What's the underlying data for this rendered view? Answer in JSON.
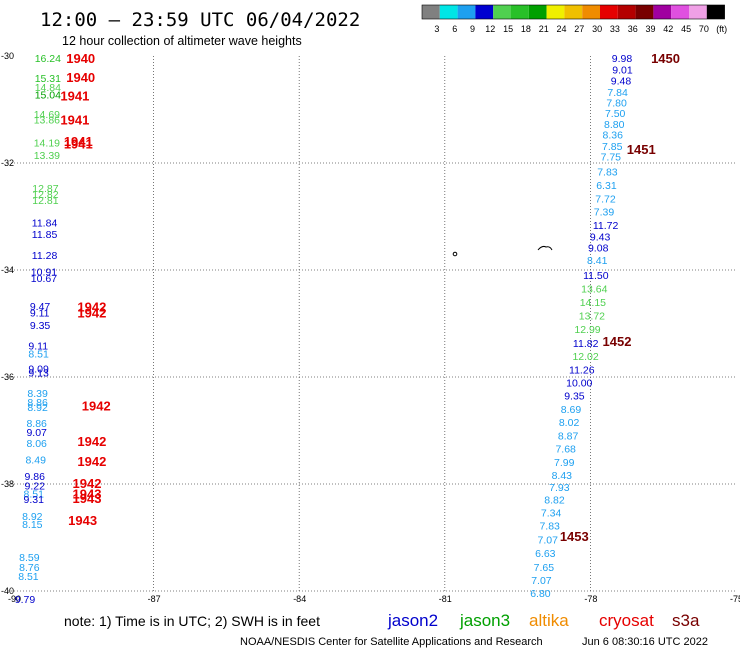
{
  "header": {
    "title": "12:00 — 23:59 UTC 06/04/2022",
    "subtitle": "12 hour collection of altimeter wave heights"
  },
  "colorbar": {
    "colors": [
      "#808080",
      "#00e6e6",
      "#1ea0f0",
      "#0000d0",
      "#50d050",
      "#28c028",
      "#00a000",
      "#f0f000",
      "#f0c000",
      "#f08c00",
      "#e60000",
      "#b40000",
      "#780000",
      "#a000a0",
      "#e050e0",
      "#f0a0e6",
      "#000000"
    ],
    "labels": [
      "3",
      "6",
      "9",
      "12",
      "15",
      "18",
      "21",
      "24",
      "27",
      "30",
      "33",
      "36",
      "39",
      "42",
      "45",
      "70",
      "(ft)"
    ]
  },
  "chart_data": {
    "type": "scatter",
    "xlim": [
      -90,
      -75
    ],
    "ylim": [
      -40,
      -30
    ],
    "x_ticks": [
      "-90",
      "-87",
      "-84",
      "-81",
      "-78",
      "-75"
    ],
    "y_ticks": [
      "-30",
      "-32",
      "-34",
      "-36",
      "-38",
      "-40"
    ],
    "grid": "dotted",
    "series": [
      {
        "name": "jason2",
        "color": "#0000cc",
        "points": [
          {
            "x": -77.56,
            "y": -30.04,
            "v": "9.98",
            "c": "#0000cc"
          },
          {
            "x": -77.55,
            "y": -30.25,
            "v": "9.01",
            "c": "#0000cc"
          },
          {
            "x": -77.58,
            "y": -30.46,
            "v": "9.48",
            "c": "#0000cc"
          },
          {
            "x": -77.65,
            "y": -30.67,
            "v": "7.84",
            "c": "#1ea0f0"
          },
          {
            "x": -77.67,
            "y": -30.87,
            "v": "7.80",
            "c": "#1ea0f0"
          },
          {
            "x": -77.7,
            "y": -31.07,
            "v": "7.50",
            "c": "#1ea0f0"
          },
          {
            "x": -77.72,
            "y": -31.27,
            "v": "8.80",
            "c": "#1ea0f0"
          },
          {
            "x": -77.75,
            "y": -31.47,
            "v": "8.36",
            "c": "#1ea0f0"
          },
          {
            "x": -77.76,
            "y": -31.68,
            "v": "7.85",
            "c": "#1ea0f0"
          },
          {
            "x": -77.79,
            "y": -31.88,
            "v": "7.75",
            "c": "#1ea0f0"
          },
          {
            "x": -77.86,
            "y": -32.16,
            "v": "7.83",
            "c": "#1ea0f0"
          },
          {
            "x": -77.88,
            "y": -32.41,
            "v": "6.31",
            "c": "#1ea0f0"
          },
          {
            "x": -77.9,
            "y": -32.66,
            "v": "7.72",
            "c": "#1ea0f0"
          },
          {
            "x": -77.93,
            "y": -32.91,
            "v": "7.39",
            "c": "#1ea0f0"
          },
          {
            "x": -77.95,
            "y": -33.16,
            "v": "11.72",
            "c": "#0000cc"
          },
          {
            "x": -78.01,
            "y": -33.37,
            "v": "9.43",
            "c": "#0000cc"
          },
          {
            "x": -78.05,
            "y": -33.58,
            "v": "9.08",
            "c": "#0000cc"
          },
          {
            "x": -78.07,
            "y": -33.81,
            "v": "8.41",
            "c": "#1ea0f0"
          },
          {
            "x": -78.15,
            "y": -34.09,
            "v": "11.50",
            "c": "#0000cc"
          },
          {
            "x": -78.19,
            "y": -34.35,
            "v": "13.64",
            "c": "#50d050"
          },
          {
            "x": -78.22,
            "y": -34.6,
            "v": "14.15",
            "c": "#50d050"
          },
          {
            "x": -78.24,
            "y": -34.85,
            "v": "13.72",
            "c": "#50d050"
          },
          {
            "x": -78.33,
            "y": -35.1,
            "v": "12.99",
            "c": "#50d050"
          },
          {
            "x": -78.36,
            "y": -35.36,
            "v": "11.82",
            "c": "#0000cc"
          },
          {
            "x": -78.37,
            "y": -35.61,
            "v": "12.02",
            "c": "#50d050"
          },
          {
            "x": -78.44,
            "y": -35.86,
            "v": "11.26",
            "c": "#0000cc"
          },
          {
            "x": -78.5,
            "y": -36.1,
            "v": "10.00",
            "c": "#0000cc"
          },
          {
            "x": -78.54,
            "y": -36.35,
            "v": "9.35",
            "c": "#0000cc"
          },
          {
            "x": -78.61,
            "y": -36.6,
            "v": "8.69",
            "c": "#1ea0f0"
          },
          {
            "x": -78.65,
            "y": -36.84,
            "v": "8.02",
            "c": "#1ea0f0"
          },
          {
            "x": -78.67,
            "y": -37.09,
            "v": "8.87",
            "c": "#1ea0f0"
          },
          {
            "x": -78.72,
            "y": -37.34,
            "v": "7.68",
            "c": "#1ea0f0"
          },
          {
            "x": -78.75,
            "y": -37.59,
            "v": "7.99",
            "c": "#1ea0f0"
          },
          {
            "x": -78.8,
            "y": -37.83,
            "v": "8.43",
            "c": "#1ea0f0"
          },
          {
            "x": -78.85,
            "y": -38.06,
            "v": "7.93",
            "c": "#1ea0f0"
          },
          {
            "x": -78.95,
            "y": -38.29,
            "v": "8.82",
            "c": "#1ea0f0"
          },
          {
            "x": -79.02,
            "y": -38.53,
            "v": "7.34",
            "c": "#1ea0f0"
          },
          {
            "x": -79.05,
            "y": -38.78,
            "v": "7.83",
            "c": "#1ea0f0"
          },
          {
            "x": -79.09,
            "y": -39.04,
            "v": "7.07",
            "c": "#1ea0f0"
          },
          {
            "x": -79.14,
            "y": -39.29,
            "v": "6.63",
            "c": "#1ea0f0"
          },
          {
            "x": -79.17,
            "y": -39.55,
            "v": "7.65",
            "c": "#1ea0f0"
          },
          {
            "x": -79.22,
            "y": -39.79,
            "v": "7.07",
            "c": "#1ea0f0"
          },
          {
            "x": -79.24,
            "y": -40.04,
            "v": "6.80",
            "c": "#1ea0f0"
          }
        ]
      },
      {
        "name": "jason3",
        "color": "#00a000",
        "points": [
          {
            "x": -89.45,
            "y": -30.04,
            "v": "16.24",
            "c": "#28c028"
          },
          {
            "x": -89.45,
            "y": -30.41,
            "v": "15.31",
            "c": "#28c028"
          },
          {
            "x": -89.45,
            "y": -30.58,
            "v": "14.84",
            "c": "#50d050"
          },
          {
            "x": -89.45,
            "y": -30.72,
            "v": "15.04",
            "c": "#00a000"
          },
          {
            "x": -89.47,
            "y": -31.08,
            "v": "14.69",
            "c": "#50d050"
          },
          {
            "x": -89.47,
            "y": -31.19,
            "v": "13.86",
            "c": "#50d050"
          },
          {
            "x": -89.47,
            "y": -31.62,
            "v": "14.19",
            "c": "#50d050"
          },
          {
            "x": -89.47,
            "y": -31.85,
            "v": "13.39",
            "c": "#50d050"
          },
          {
            "x": -89.5,
            "y": -32.47,
            "v": "12.87",
            "c": "#50d050"
          },
          {
            "x": -89.5,
            "y": -32.58,
            "v": "12.82",
            "c": "#50d050"
          },
          {
            "x": -89.5,
            "y": -32.69,
            "v": "12.81",
            "c": "#50d050"
          },
          {
            "x": -89.51,
            "y": -33.11,
            "v": "11.84",
            "c": "#0000cc"
          },
          {
            "x": -89.51,
            "y": -33.33,
            "v": "11.85",
            "c": "#0000cc"
          },
          {
            "x": -89.51,
            "y": -33.72,
            "v": "11.28",
            "c": "#0000cc"
          },
          {
            "x": -89.53,
            "y": -34.03,
            "v": "10.91",
            "c": "#0000cc"
          },
          {
            "x": -89.53,
            "y": -34.15,
            "v": "10.67",
            "c": "#0000cc"
          },
          {
            "x": -89.55,
            "y": -34.67,
            "v": "9.47",
            "c": "#0000cc"
          },
          {
            "x": -89.55,
            "y": -34.79,
            "v": "9.11",
            "c": "#0000cc"
          },
          {
            "x": -89.55,
            "y": -35.03,
            "v": "9.35",
            "c": "#0000cc"
          },
          {
            "x": -89.58,
            "y": -35.41,
            "v": "9.11",
            "c": "#0000cc"
          },
          {
            "x": -89.58,
            "y": -35.56,
            "v": "8.51",
            "c": "#1ea0f0"
          },
          {
            "x": -89.58,
            "y": -35.84,
            "v": "9.09",
            "c": "#0000cc"
          },
          {
            "x": -89.58,
            "y": -35.92,
            "v": "9.13",
            "c": "#0000cc"
          },
          {
            "x": -89.6,
            "y": -36.3,
            "v": "8.39",
            "c": "#1ea0f0"
          },
          {
            "x": -89.6,
            "y": -36.47,
            "v": "8.86",
            "c": "#1ea0f0"
          },
          {
            "x": -89.6,
            "y": -36.56,
            "v": "8.92",
            "c": "#1ea0f0"
          },
          {
            "x": -89.62,
            "y": -36.86,
            "v": "8.86",
            "c": "#1ea0f0"
          },
          {
            "x": -89.62,
            "y": -37.03,
            "v": "9.07",
            "c": "#0000cc"
          },
          {
            "x": -89.62,
            "y": -37.23,
            "v": "8.06",
            "c": "#1ea0f0"
          },
          {
            "x": -89.64,
            "y": -37.54,
            "v": "8.49",
            "c": "#1ea0f0"
          },
          {
            "x": -89.66,
            "y": -37.85,
            "v": "9.86",
            "c": "#0000cc"
          },
          {
            "x": -89.66,
            "y": -38.03,
            "v": "9.22",
            "c": "#0000cc"
          },
          {
            "x": -89.68,
            "y": -38.18,
            "v": "8.51",
            "c": "#1ea0f0"
          },
          {
            "x": -89.68,
            "y": -38.28,
            "v": "9.31",
            "c": "#0000cc"
          },
          {
            "x": -89.71,
            "y": -38.6,
            "v": "8.92",
            "c": "#1ea0f0"
          },
          {
            "x": -89.71,
            "y": -38.75,
            "v": "8.15",
            "c": "#1ea0f0"
          },
          {
            "x": -89.77,
            "y": -39.36,
            "v": "8.59",
            "c": "#1ea0f0"
          },
          {
            "x": -89.77,
            "y": -39.55,
            "v": "8.76",
            "c": "#1ea0f0"
          },
          {
            "x": -89.79,
            "y": -39.72,
            "v": "8.51",
            "c": "#1ea0f0"
          },
          {
            "x": -89.86,
            "y": -40.15,
            "v": "9.79",
            "c": "#0000cc"
          }
        ]
      }
    ],
    "time_labels": [
      {
        "x": -88.8,
        "y": -30.04,
        "t": "1940",
        "c": "#e60000"
      },
      {
        "x": -88.8,
        "y": -30.39,
        "t": "1940",
        "c": "#e60000"
      },
      {
        "x": -88.92,
        "y": -30.74,
        "t": "1941",
        "c": "#e60000"
      },
      {
        "x": -88.92,
        "y": -31.19,
        "t": "1941",
        "c": "#e60000"
      },
      {
        "x": -88.85,
        "y": -31.59,
        "t": "1941",
        "c": "#e60000"
      },
      {
        "x": -88.85,
        "y": -31.64,
        "t": "1941",
        "c": "#e60000"
      },
      {
        "x": -88.57,
        "y": -34.68,
        "t": "1942",
        "c": "#e60000"
      },
      {
        "x": -88.57,
        "y": -34.79,
        "t": "1942",
        "c": "#e60000"
      },
      {
        "x": -88.48,
        "y": -36.53,
        "t": "1942",
        "c": "#e60000"
      },
      {
        "x": -88.57,
        "y": -37.2,
        "t": "1942",
        "c": "#e60000"
      },
      {
        "x": -88.57,
        "y": -37.57,
        "t": "1942",
        "c": "#e60000"
      },
      {
        "x": -88.67,
        "y": -37.98,
        "t": "1942",
        "c": "#e60000"
      },
      {
        "x": -88.67,
        "y": -38.18,
        "t": "1943",
        "c": "#e60000"
      },
      {
        "x": -88.67,
        "y": -38.26,
        "t": "1943",
        "c": "#e60000"
      },
      {
        "x": -88.76,
        "y": -38.67,
        "t": "1943",
        "c": "#e60000"
      },
      {
        "x": -76.75,
        "y": -30.04,
        "t": "1450",
        "c": "#780000"
      },
      {
        "x": -77.25,
        "y": -31.74,
        "t": "1451",
        "c": "#780000"
      },
      {
        "x": -77.75,
        "y": -35.33,
        "t": "1452",
        "c": "#780000"
      },
      {
        "x": -78.63,
        "y": -38.97,
        "t": "1453",
        "c": "#780000"
      }
    ]
  },
  "footer": {
    "note": "note: 1) Time is in UTC; 2) SWH is in feet",
    "satellites": [
      {
        "name": "jason2",
        "color": "#0000cc"
      },
      {
        "name": "jason3",
        "color": "#00a000"
      },
      {
        "name": "altika",
        "color": "#f08c00"
      },
      {
        "name": "cryosat",
        "color": "#e60000"
      },
      {
        "name": "s3a",
        "color": "#780000"
      }
    ],
    "credit": "NOAA/NESDIS Center for Satellite Applications and Research",
    "timestamp": "Jun  6 08:30:16 UTC 2022"
  }
}
